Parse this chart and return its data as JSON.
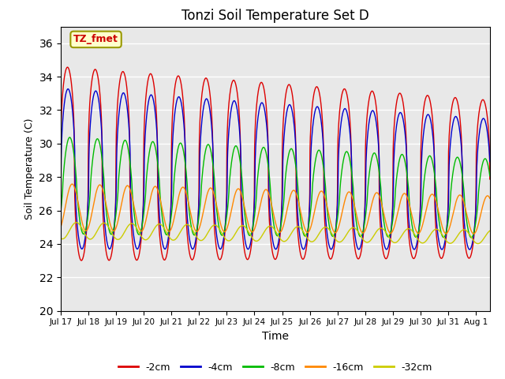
{
  "title": "Tonzi Soil Temperature Set D",
  "xlabel": "Time",
  "ylabel": "Soil Temperature (C)",
  "ylim": [
    20,
    37
  ],
  "yticks": [
    20,
    22,
    24,
    26,
    28,
    30,
    32,
    34,
    36
  ],
  "annotation_text": "TZ_fmet",
  "annotation_bg": "#ffffcc",
  "annotation_border": "#999900",
  "colors": {
    "-2cm": "#dd0000",
    "-4cm": "#0000cc",
    "-8cm": "#00bb00",
    "-16cm": "#ff8800",
    "-32cm": "#cccc00"
  },
  "bg_color": "#e8e8e8",
  "n_days": 15.5,
  "dt_hours": 0.25,
  "depth_params": {
    "-2cm": {
      "mean": 28.8,
      "amp": 5.8,
      "phase": 0.0,
      "trend": -0.06,
      "sharp": 2.5
    },
    "-4cm": {
      "mean": 28.5,
      "amp": 4.8,
      "phase": 0.12,
      "trend": -0.06,
      "sharp": 2.0
    },
    "-8cm": {
      "mean": 27.5,
      "amp": 2.9,
      "phase": 0.5,
      "trend": -0.05,
      "sharp": 1.3
    },
    "-16cm": {
      "mean": 26.2,
      "amp": 1.4,
      "phase": 1.05,
      "trend": -0.03,
      "sharp": 1.0
    },
    "-32cm": {
      "mean": 24.8,
      "amp": 0.5,
      "phase": 2.0,
      "trend": -0.025,
      "sharp": 1.0
    }
  },
  "legend_labels": [
    "-2cm",
    "-4cm",
    "-8cm",
    "-16cm",
    "-32cm"
  ],
  "tick_labels": [
    "Jul 17",
    "Jul 18",
    "Jul 19",
    "Jul 20",
    "Jul 21",
    "Jul 22",
    "Jul 23",
    "Jul 24",
    "Jul 25",
    "Jul 26",
    "Jul 27",
    "Jul 28",
    "Jul 29",
    "Jul 30",
    "Jul 31",
    "Aug 1"
  ]
}
